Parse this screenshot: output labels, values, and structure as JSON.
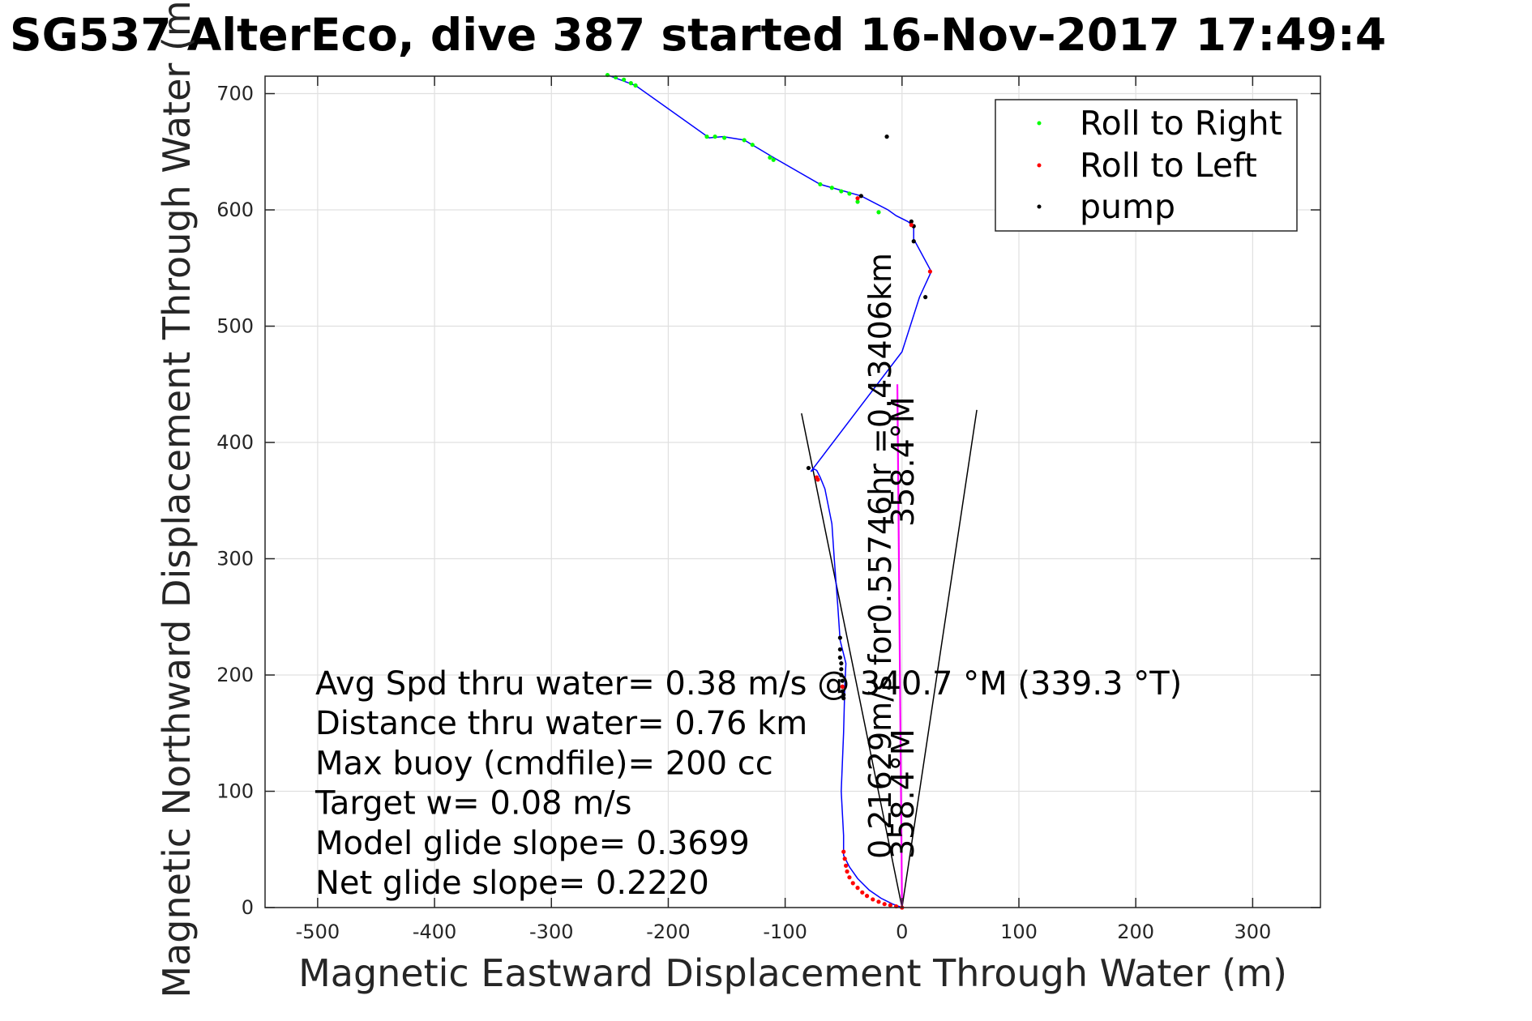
{
  "chart_data": {
    "type": "scatter",
    "title": "SG537 AlterEco, dive 387 started 16-Nov-2017 17:49:4",
    "xlabel": "Magnetic Eastward Displacement Through Water (m)",
    "ylabel": "Magnetic Northward Displacement Through Water (m)",
    "xlim": [
      -545,
      358
    ],
    "ylim": [
      0,
      715
    ],
    "xticks": [
      -500,
      -400,
      -300,
      -200,
      -100,
      0,
      100,
      200,
      300
    ],
    "yticks": [
      0,
      100,
      200,
      300,
      400,
      500,
      600,
      700
    ],
    "grid": true,
    "legend_position": "top-right",
    "legend": [
      {
        "label": "Roll to Right",
        "color": "#00ff00"
      },
      {
        "label": "Roll to Left",
        "color": "#ff0000"
      },
      {
        "label": "pump",
        "color": "#000000"
      }
    ],
    "track": {
      "color": "#0000ff",
      "x": [
        0,
        -8,
        -18,
        -28,
        -38,
        -45,
        -50,
        -50,
        -52,
        -50,
        -49,
        -48,
        -53,
        -55,
        -58,
        -60,
        -63,
        -66,
        -70,
        -73,
        -75,
        -78,
        0,
        15,
        25,
        10,
        10,
        5,
        -5,
        -12,
        -35,
        -70,
        -110,
        -135,
        -153,
        -165,
        -228,
        -252
      ],
      "y": [
        0,
        3,
        8,
        15,
        25,
        35,
        45,
        62,
        100,
        150,
        190,
        210,
        230,
        260,
        300,
        330,
        345,
        360,
        370,
        376,
        377,
        375,
        478,
        525,
        547,
        575,
        586,
        590,
        595,
        600,
        612,
        622,
        645,
        660,
        663,
        662,
        707,
        716
      ]
    },
    "roll_right": {
      "color": "#00ff00",
      "x": [
        -252,
        -245,
        -238,
        -232,
        -228,
        -167,
        -160,
        -152,
        -135,
        -128,
        -113,
        -110,
        -70,
        -60,
        -52,
        -45,
        -20,
        -38
      ],
      "y": [
        716,
        714,
        712,
        709,
        707,
        663,
        663,
        662,
        660,
        656,
        645,
        643,
        622,
        619,
        616,
        614,
        598,
        607
      ]
    },
    "roll_left": {
      "color": "#ff0000",
      "x": [
        -50,
        -49,
        -48,
        -47,
        -45,
        -42,
        -38,
        -34,
        -30,
        -25,
        -20,
        -15,
        -10,
        -5,
        0,
        -73,
        -72,
        -51,
        24,
        8,
        -38
      ],
      "y": [
        48,
        42,
        36,
        31,
        26,
        21,
        17,
        13,
        10,
        7,
        5,
        3,
        2,
        1,
        0,
        370,
        368,
        190,
        547,
        587,
        610
      ]
    },
    "pump": {
      "color": "#000000",
      "x": [
        -53,
        -53,
        -53,
        -52,
        -52,
        -52,
        -51,
        -51,
        -51,
        -50,
        -50,
        10,
        10,
        20,
        8,
        -35,
        -13,
        -80
      ],
      "y": [
        232,
        222,
        215,
        210,
        205,
        200,
        195,
        190,
        186,
        183,
        180,
        586,
        573,
        525,
        590,
        612,
        663,
        378
      ]
    },
    "avg_heading_line": {
      "color": "#ff00ff",
      "x": [
        0,
        -4
      ],
      "y": [
        0,
        450
      ]
    },
    "cone_lines": [
      {
        "color": "#000000",
        "x": [
          0,
          -86
        ],
        "y": [
          0,
          425
        ]
      },
      {
        "color": "#000000",
        "x": [
          0,
          64
        ],
        "y": [
          0,
          428
        ]
      }
    ],
    "stats_lines": [
      "Avg Spd thru water=  0.38 m/s @ 340.7 °M (339.3 °T)",
      "Distance thru water=  0.76 km",
      "Max buoy (cmdfile)= 200 cc",
      "Target w= 0.08 m/s",
      "Model glide slope= 0.3699",
      "Net glide slope= 0.2220"
    ],
    "rotated_annotations": [
      {
        "text": "0.21629m/s for0.55746hr =0.43406km",
        "anchor": [
          -28,
          45
        ]
      },
      {
        "text": "358.4°M",
        "anchor": [
          -5,
          45
        ]
      },
      {
        "text": "358.4°M",
        "anchor": [
          -5,
          330
        ]
      }
    ]
  }
}
